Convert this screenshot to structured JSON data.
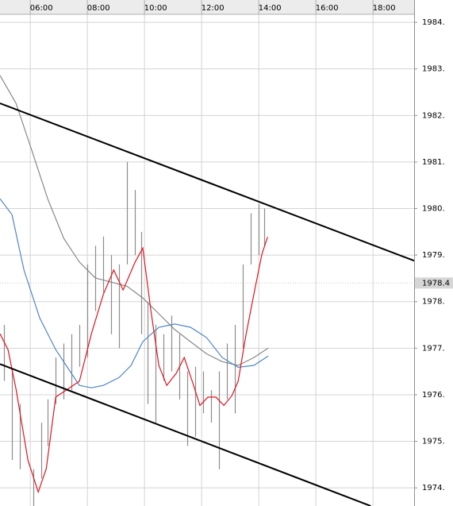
{
  "chart_data": {
    "type": "hilo",
    "xlim": [
      4.94,
      19.44
    ],
    "xticks": [
      {
        "value": 6,
        "label": "06:00"
      },
      {
        "value": 8,
        "label": "08:00"
      },
      {
        "value": 10,
        "label": "10:00"
      },
      {
        "value": 12,
        "label": "12:00"
      },
      {
        "value": 14,
        "label": "14:00"
      },
      {
        "value": 16,
        "label": "16:00"
      },
      {
        "value": 18,
        "label": "18:00"
      }
    ],
    "ylim": [
      1973.61,
      1984.48
    ],
    "yticks": [
      {
        "value": 1984,
        "label": "1984."
      },
      {
        "value": 1983,
        "label": "1983."
      },
      {
        "value": 1982,
        "label": "1982."
      },
      {
        "value": 1981,
        "label": "1981."
      },
      {
        "value": 1980,
        "label": "1980."
      },
      {
        "value": 1979,
        "label": "1979."
      },
      {
        "value": 1978,
        "label": "1978."
      },
      {
        "value": 1977,
        "label": "1977."
      },
      {
        "value": 1976,
        "label": "1976."
      },
      {
        "value": 1975,
        "label": "1975."
      },
      {
        "value": 1974,
        "label": "1974."
      }
    ],
    "grid": true,
    "last_price": 1978.4,
    "bars": {
      "color": "#8c8c8c",
      "x": [
        5.08,
        5.36,
        5.64,
        6.11,
        6.39,
        6.61,
        6.89,
        7.17,
        7.44,
        7.72,
        8.0,
        8.28,
        8.56,
        8.83,
        9.11,
        9.39,
        9.67,
        9.89,
        10.11,
        10.39,
        10.67,
        10.94,
        11.22,
        11.5,
        11.78,
        12.06,
        12.33,
        12.61,
        12.89,
        13.17,
        13.44,
        13.72,
        14.0,
        14.19
      ],
      "high": [
        1977.5,
        1976.5,
        1975.8,
        1974.4,
        1975.4,
        1975.9,
        1976.8,
        1977.1,
        1977.3,
        1977.5,
        1978.8,
        1979.2,
        1979.4,
        1979.0,
        1978.8,
        1981.0,
        1980.4,
        1979.5,
        1978.0,
        1977.5,
        1977.3,
        1977.7,
        1977.3,
        1976.5,
        1976.6,
        1976.5,
        1976.1,
        1976.5,
        1977.1,
        1977.5,
        1978.8,
        1979.9,
        1980.1,
        1980.0
      ],
      "low": [
        1976.3,
        1974.6,
        1974.4,
        1973.6,
        1974.2,
        1974.9,
        1975.8,
        1975.9,
        1976.1,
        1976.6,
        1976.8,
        1977.8,
        1978.2,
        1977.3,
        1977.0,
        1978.8,
        1979.0,
        1977.3,
        1975.8,
        1975.4,
        1976.3,
        1976.5,
        1975.9,
        1974.9,
        1975.1,
        1975.6,
        1975.4,
        1974.4,
        1975.9,
        1975.6,
        1977.0,
        1978.8,
        1979.0,
        1979.2
      ]
    },
    "lines": [
      {
        "color": "#888888",
        "x": [
          4.94,
          5.5,
          6.06,
          6.61,
          7.17,
          7.72,
          8.28,
          8.83,
          9.39,
          9.94,
          10.5,
          11.06,
          11.61,
          12.17,
          12.72,
          13.28,
          13.83,
          14.33
        ],
        "values": [
          1982.86,
          1982.26,
          1981.24,
          1980.21,
          1979.36,
          1978.85,
          1978.51,
          1978.42,
          1978.33,
          1978.08,
          1977.74,
          1977.4,
          1977.14,
          1976.88,
          1976.71,
          1976.63,
          1976.8,
          1977.0
        ]
      },
      {
        "color": "#4f86c6",
        "x": [
          4.94,
          5.36,
          5.78,
          6.33,
          6.89,
          7.44,
          7.72,
          8.14,
          8.56,
          9.11,
          9.53,
          9.94,
          10.5,
          11.06,
          11.61,
          12.17,
          12.72,
          13.28,
          13.83,
          14.33
        ],
        "values": [
          1980.21,
          1979.87,
          1978.68,
          1977.65,
          1976.97,
          1976.46,
          1976.2,
          1976.15,
          1976.2,
          1976.37,
          1976.63,
          1977.14,
          1977.45,
          1977.52,
          1977.45,
          1977.23,
          1976.8,
          1976.59,
          1976.63,
          1976.83
        ]
      },
      {
        "color": "#e0141e",
        "x": [
          4.94,
          5.22,
          5.5,
          5.92,
          6.28,
          6.56,
          6.89,
          7.31,
          7.72,
          8.14,
          8.56,
          8.92,
          9.25,
          9.67,
          9.94,
          10.22,
          10.5,
          10.78,
          11.11,
          11.39,
          11.67,
          11.94,
          12.22,
          12.5,
          12.78,
          13.06,
          13.28,
          13.56,
          13.83,
          14.11,
          14.31
        ],
        "values": [
          1977.31,
          1976.97,
          1976.12,
          1974.59,
          1973.91,
          1974.41,
          1975.95,
          1976.12,
          1976.29,
          1977.31,
          1978.16,
          1978.68,
          1978.25,
          1978.85,
          1979.15,
          1977.82,
          1976.63,
          1976.2,
          1976.46,
          1976.8,
          1976.29,
          1975.77,
          1975.95,
          1975.95,
          1975.77,
          1975.98,
          1976.29,
          1977.31,
          1978.16,
          1979.02,
          1979.39
        ]
      }
    ],
    "trendlines": [
      {
        "color": "#000000",
        "x": [
          4.94,
          19.44
        ],
        "values": [
          1982.26,
          1978.88
        ]
      },
      {
        "color": "#000000",
        "x": [
          4.94,
          17.92
        ],
        "values": [
          1976.66,
          1973.61
        ]
      }
    ]
  }
}
